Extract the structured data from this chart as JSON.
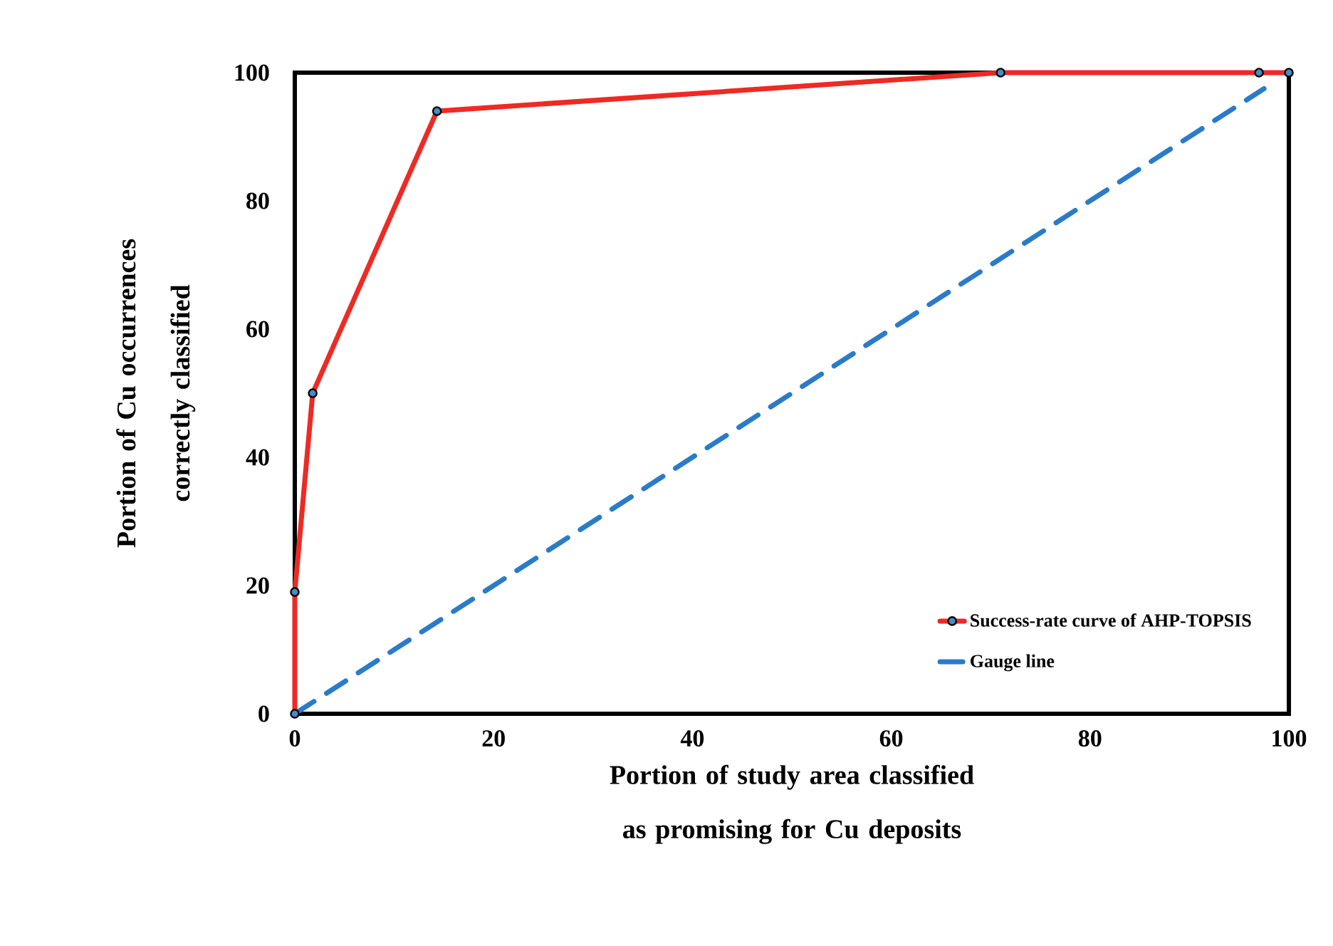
{
  "chart_data": {
    "type": "line",
    "xlabel": "Portion of study area classified as promising for Cu deposits",
    "ylabel": "Portion of Cu occurrences correctly classified",
    "xlim": [
      0,
      100
    ],
    "ylim": [
      0,
      100
    ],
    "xticks": [
      0,
      20,
      40,
      60,
      80,
      100
    ],
    "yticks": [
      0,
      20,
      40,
      60,
      80,
      100
    ],
    "grid": false,
    "legend": "bottom right",
    "series": [
      {
        "name": "Success-rate curve of AHP-TOPSIS",
        "color": "#ee2a24",
        "x": [
          0,
          0,
          1.8,
          14.3,
          71,
          97,
          100
        ],
        "values": [
          0,
          19,
          50,
          94,
          100,
          100,
          100
        ],
        "marker": "circle",
        "line_style": "solid"
      },
      {
        "name": "Gauge line",
        "color": "#2a7bc8",
        "x": [
          0,
          97.5
        ],
        "values": [
          0,
          97.5
        ],
        "line_style": "dashed"
      }
    ]
  }
}
